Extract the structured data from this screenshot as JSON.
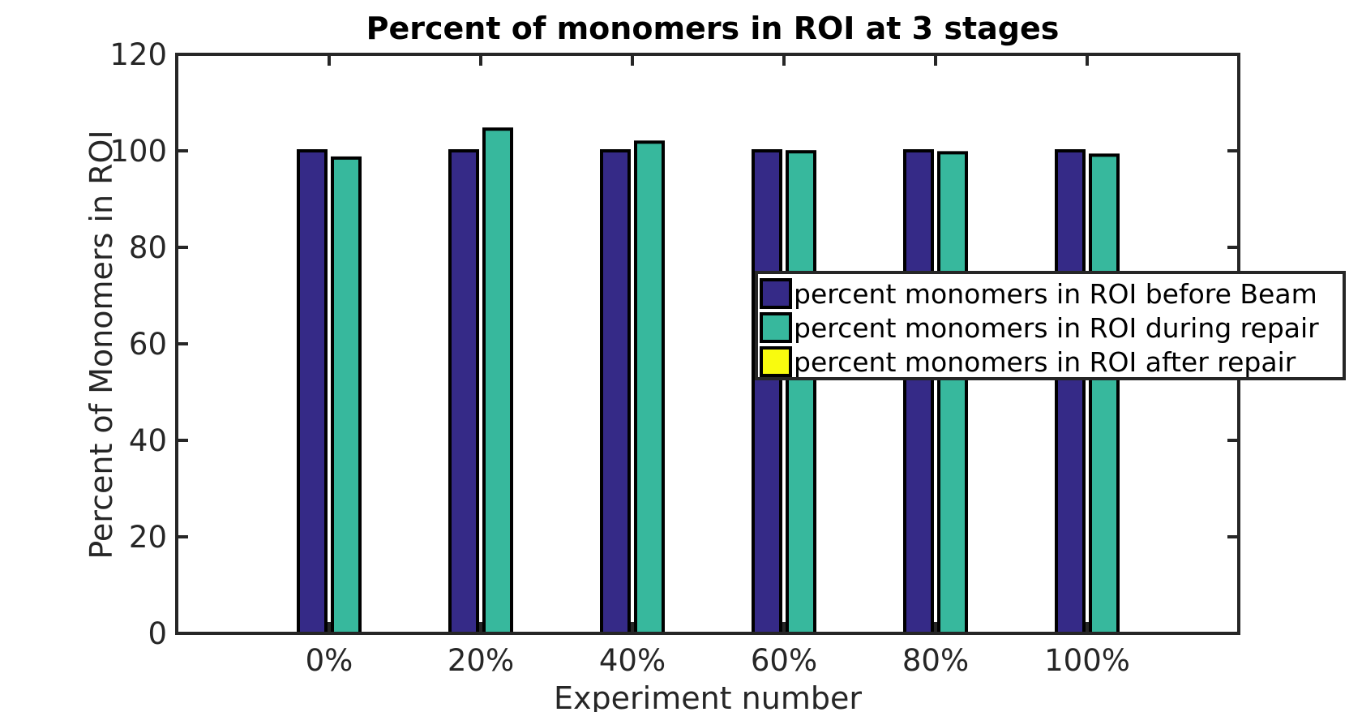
{
  "chart_data": {
    "type": "bar",
    "title": "Percent of monomers in ROI at 3 stages",
    "xlabel": "Experiment number",
    "ylabel": "Percent of Monomers in ROI",
    "categories": [
      "0%",
      "20%",
      "40%",
      "60%",
      "80%",
      "100%"
    ],
    "ylim": [
      0,
      120
    ],
    "yticks": [
      0,
      20,
      40,
      60,
      80,
      100,
      120
    ],
    "grid": false,
    "legend_position": "right",
    "series": [
      {
        "name": "percent monomers in ROI before Beam",
        "color": "#352a87",
        "values": [
          100,
          100,
          100,
          100,
          100,
          100
        ]
      },
      {
        "name": "percent monomers in ROI during repair",
        "color": "#37b89d",
        "values": [
          98.5,
          104.5,
          101.8,
          99.8,
          99.6,
          99.1
        ]
      },
      {
        "name": "percent monomers in ROI after repair",
        "color": "#f9fb0e",
        "values": [
          0,
          0,
          0,
          0,
          0,
          0
        ]
      }
    ]
  }
}
